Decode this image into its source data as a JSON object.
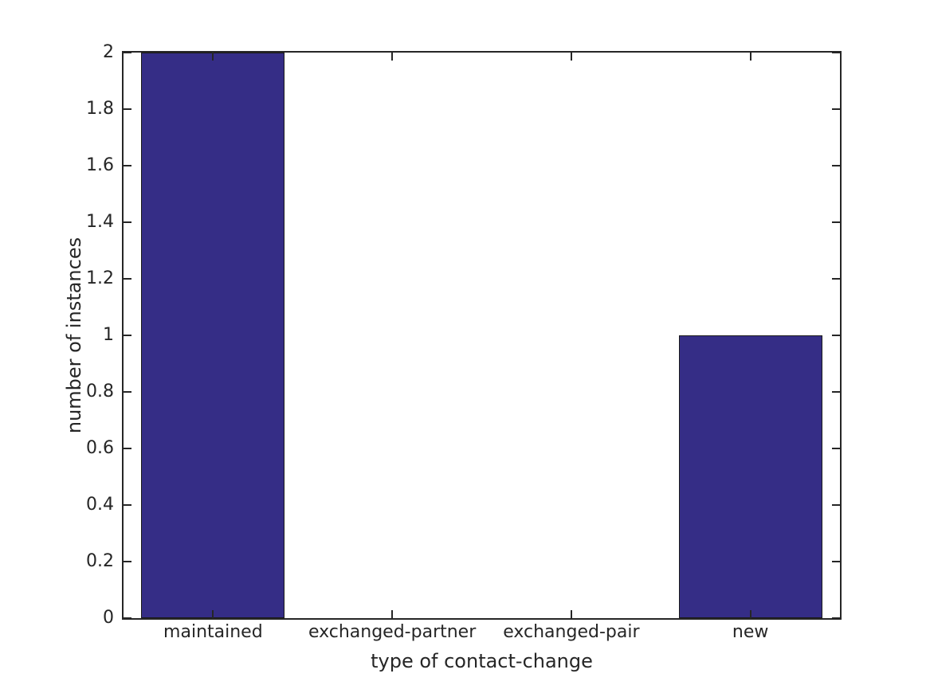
{
  "figure": {
    "background_color": "#ffffff",
    "axes_color": "#262626",
    "text_color": "#262626"
  },
  "chart_data": {
    "type": "bar",
    "title": "",
    "categories": [
      "maintained",
      "exchanged-partner",
      "exchanged-pair",
      "new"
    ],
    "values": [
      2,
      0,
      0,
      1
    ],
    "xlabel": "type of contact-change",
    "ylabel": "number of instances",
    "ylim": [
      0,
      2
    ],
    "yticks": [
      0,
      0.2,
      0.4,
      0.6,
      0.8,
      1,
      1.2,
      1.4,
      1.6,
      1.8,
      2
    ],
    "ytick_labels": [
      "0",
      "0.2",
      "0.4",
      "0.6",
      "0.8",
      "1",
      "1.2",
      "1.4",
      "1.6",
      "1.8",
      "2"
    ],
    "bar_color": "#352d86",
    "bar_edge_color": "#1a1a1a",
    "bar_width_fraction": 0.8,
    "grid": false,
    "legend_position": "none",
    "box": true,
    "tick_direction": "in"
  }
}
